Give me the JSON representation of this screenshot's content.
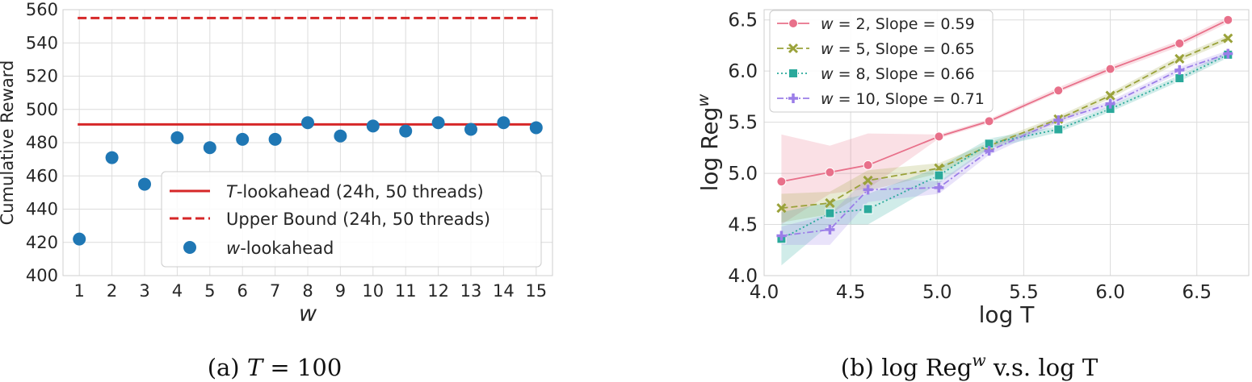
{
  "chart_data": [
    {
      "type": "scatter",
      "caption": "(a) T = 100",
      "xlabel": "w",
      "ylabel": "Cumulative Reward",
      "xlim": [
        0.5,
        15.5
      ],
      "ylim": [
        400,
        560
      ],
      "xticks": [
        1,
        2,
        3,
        4,
        5,
        6,
        7,
        8,
        9,
        10,
        11,
        12,
        13,
        14,
        15
      ],
      "yticks": [
        400,
        420,
        440,
        460,
        480,
        500,
        520,
        540,
        560
      ],
      "grid": true,
      "legend_position": "lower-right",
      "hlines": [
        {
          "name": "T-lookahead (24h, 50 threads)",
          "value": 491,
          "color": "#d62728",
          "style": "solid"
        },
        {
          "name": "Upper Bound (24h, 50 threads)",
          "value": 555,
          "color": "#d62728",
          "style": "dashed"
        }
      ],
      "series": [
        {
          "name": "w-lookahead",
          "color": "#1f77b4",
          "x": [
            1,
            2,
            3,
            4,
            5,
            6,
            7,
            8,
            9,
            10,
            11,
            12,
            13,
            14,
            15
          ],
          "y": [
            422,
            471,
            455,
            483,
            477,
            482,
            482,
            492,
            484,
            490,
            487,
            492,
            488,
            492,
            489
          ]
        }
      ]
    },
    {
      "type": "line",
      "caption": "(b) log Reg^w v.s. log T",
      "xlabel": "log T",
      "ylabel": "log Reg^w",
      "xlim": [
        4.0,
        6.8
      ],
      "ylim": [
        4.0,
        6.6
      ],
      "xticks": [
        4.0,
        4.5,
        5.0,
        5.5,
        6.0,
        6.5
      ],
      "yticks": [
        4.0,
        4.5,
        5.0,
        5.5,
        6.0,
        6.5
      ],
      "grid": true,
      "legend_position": "top-left",
      "x": [
        4.1,
        4.38,
        4.6,
        5.01,
        5.3,
        5.7,
        6.0,
        6.4,
        6.68
      ],
      "series": [
        {
          "name": "w = 2, Slope = 0.59",
          "color": "#e8708a",
          "marker": "circle",
          "style": "solid",
          "values": [
            4.92,
            5.01,
            5.08,
            5.36,
            5.51,
            5.81,
            6.02,
            6.27,
            6.5
          ],
          "band_low": [
            4.5,
            4.8,
            4.85,
            5.34,
            5.49,
            5.79,
            5.99,
            6.24,
            6.47
          ],
          "band_high": [
            5.38,
            5.27,
            5.39,
            5.38,
            5.53,
            5.84,
            6.05,
            6.3,
            6.53
          ]
        },
        {
          "name": "w = 5, Slope = 0.65",
          "color": "#9aa23a",
          "marker": "x",
          "style": "dashed",
          "values": [
            4.66,
            4.71,
            4.93,
            5.05,
            5.27,
            5.53,
            5.76,
            6.12,
            6.32
          ],
          "band_low": [
            4.52,
            4.6,
            4.83,
            5.0,
            5.24,
            5.5,
            5.73,
            6.09,
            6.29
          ],
          "band_high": [
            4.8,
            4.82,
            5.03,
            5.1,
            5.3,
            5.56,
            5.79,
            6.15,
            6.35
          ]
        },
        {
          "name": "w = 8, Slope = 0.66",
          "color": "#2aa99b",
          "marker": "square",
          "style": "dotted",
          "values": [
            4.36,
            4.61,
            4.65,
            4.98,
            5.29,
            5.43,
            5.63,
            5.93,
            6.16
          ],
          "band_low": [
            4.1,
            4.5,
            4.5,
            4.9,
            5.24,
            5.4,
            5.6,
            5.9,
            6.13
          ],
          "band_high": [
            4.62,
            4.72,
            4.8,
            5.06,
            5.34,
            5.46,
            5.66,
            5.96,
            6.19
          ]
        },
        {
          "name": "w = 10, Slope = 0.71",
          "color": "#9b7ee8",
          "marker": "plus",
          "style": "dashdot",
          "values": [
            4.39,
            4.45,
            4.84,
            4.86,
            5.22,
            5.52,
            5.68,
            6.01,
            6.17
          ],
          "band_low": [
            4.3,
            4.3,
            4.72,
            4.8,
            5.18,
            5.49,
            5.65,
            5.98,
            6.14
          ],
          "band_high": [
            4.48,
            4.6,
            4.96,
            4.92,
            5.26,
            5.55,
            5.71,
            6.04,
            6.2
          ]
        }
      ]
    }
  ]
}
